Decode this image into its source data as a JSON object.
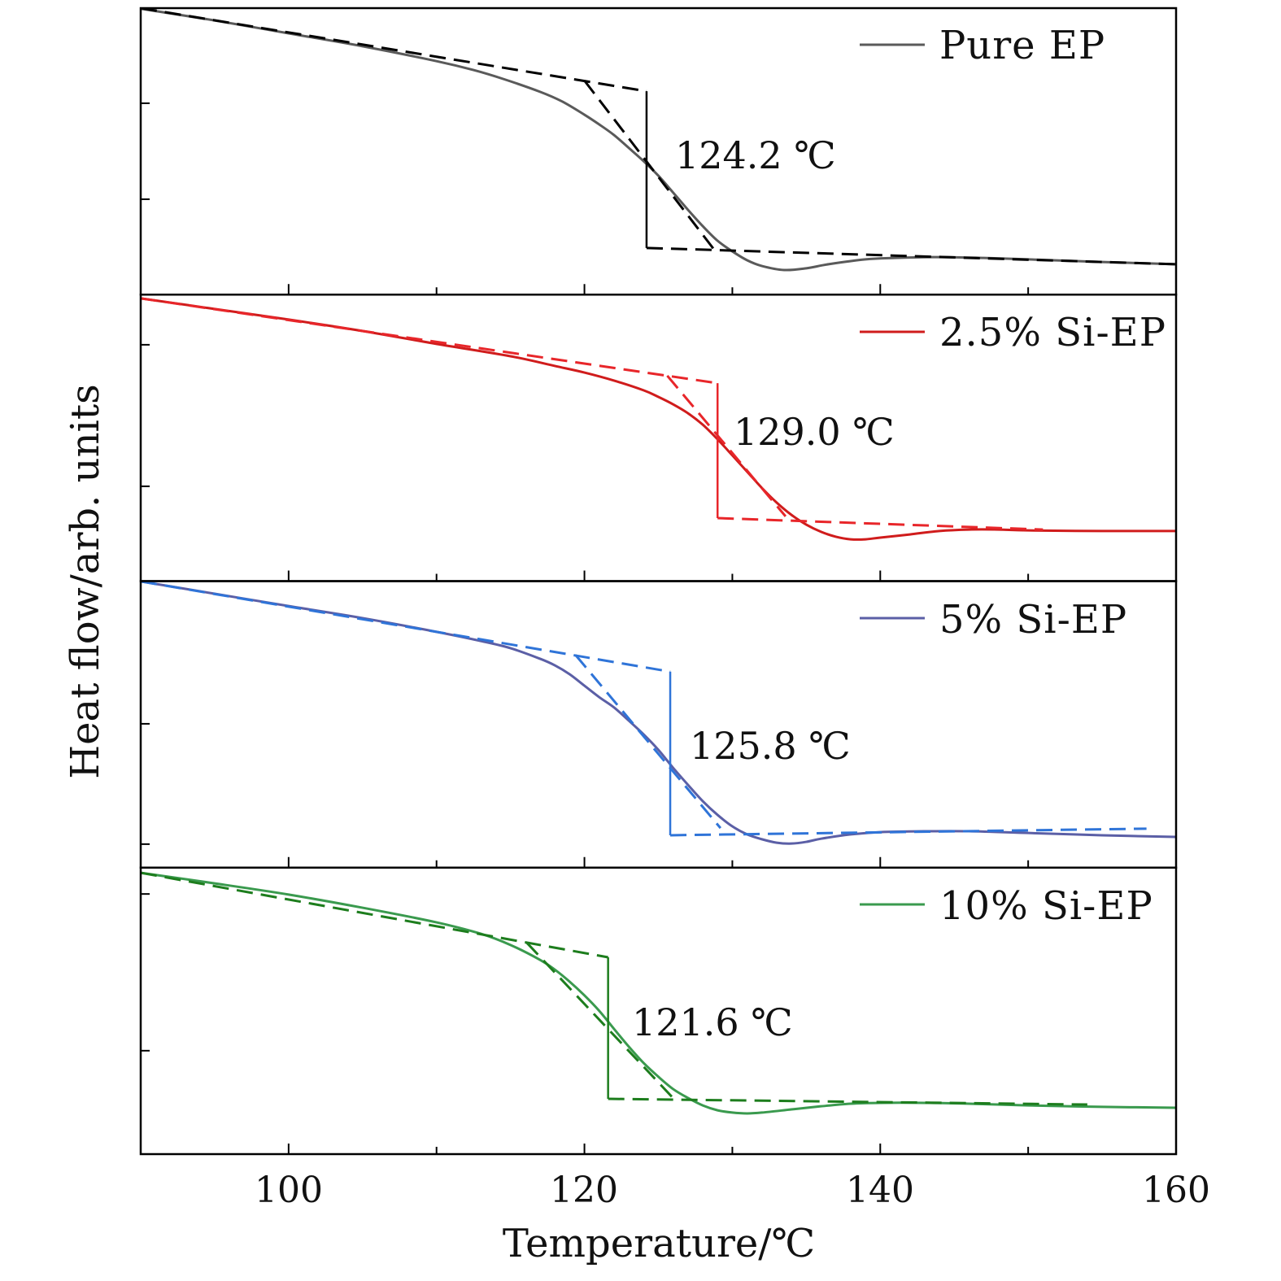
{
  "chart_data": {
    "type": "line",
    "xlabel": "Temperature/℃",
    "ylabel": "Heat flow/arb. units",
    "xlim": [
      90,
      160
    ],
    "xticks": [
      90,
      100,
      110,
      120,
      130,
      140,
      150,
      160
    ],
    "xtick_label_values": [
      100,
      120,
      140,
      160
    ],
    "xtick_labels": [
      "100",
      "120",
      "140",
      "160"
    ],
    "panels": [
      {
        "name": "Pure EP",
        "color": "#5a5a5a",
        "fit_color": "#000000",
        "ylim": [
          0,
          10
        ],
        "yticks": [
          3.33,
          6.68
        ],
        "tg": 124.2,
        "tg_label": "124.2 ℃",
        "x": [
          90,
          95,
          100,
          105,
          110,
          112.5,
          114.5,
          117,
          118.5,
          120,
          121,
          122,
          123,
          124,
          125,
          126,
          127,
          128,
          129,
          130,
          131,
          132,
          133.5,
          135,
          136.5,
          139,
          141,
          144,
          147,
          150,
          155,
          160
        ],
        "y": [
          9.98,
          9.57,
          9.12,
          8.67,
          8.15,
          7.84,
          7.53,
          7.08,
          6.74,
          6.28,
          5.94,
          5.57,
          5.12,
          4.66,
          4.15,
          3.56,
          2.96,
          2.39,
          1.88,
          1.51,
          1.2,
          1.0,
          0.86,
          0.92,
          1.06,
          1.23,
          1.28,
          1.31,
          1.28,
          1.23,
          1.14,
          1.06
        ],
        "onset_baseline": [
          [
            90,
            10.0
          ],
          [
            124.2,
            7.1
          ]
        ],
        "tangent": [
          [
            120.0,
            7.47
          ],
          [
            128.8,
            1.55
          ]
        ],
        "end_baseline": [
          [
            124.2,
            1.63
          ],
          [
            160,
            1.06
          ]
        ]
      },
      {
        "name": "2.5% Si-EP",
        "color": "#d01c1c",
        "fit_color": "#e8262a",
        "ylim": [
          0,
          10
        ],
        "yticks": [
          3.31,
          8.25
        ],
        "tg": 129.0,
        "tg_label": "129.0 ℃",
        "x": [
          90,
          95,
          100,
          105,
          110,
          115,
          118,
          120,
          122,
          124,
          125,
          126,
          127,
          128,
          129,
          130,
          131,
          132,
          133,
          134,
          135,
          136,
          137,
          138,
          139,
          140,
          142,
          144,
          146,
          148,
          150,
          155,
          160
        ],
        "y": [
          9.87,
          9.5,
          9.13,
          8.73,
          8.28,
          7.85,
          7.51,
          7.28,
          7.0,
          6.66,
          6.43,
          6.17,
          5.86,
          5.46,
          4.95,
          4.39,
          3.82,
          3.25,
          2.74,
          2.31,
          1.97,
          1.72,
          1.55,
          1.46,
          1.46,
          1.52,
          1.63,
          1.75,
          1.8,
          1.8,
          1.77,
          1.75,
          1.75
        ],
        "onset_baseline": [
          [
            90,
            9.87
          ],
          [
            129.0,
            6.91
          ]
        ],
        "tangent": [
          [
            125.6,
            7.17
          ],
          [
            133.6,
            2.26
          ]
        ],
        "end_baseline": [
          [
            129.0,
            2.2
          ],
          [
            151,
            1.8
          ]
        ]
      },
      {
        "name": "5% Si-EP",
        "color": "#5b5fa6",
        "fit_color": "#2f74d8",
        "ylim": [
          0,
          10
        ],
        "yticks": [
          0.82,
          5.02
        ],
        "tg": 125.8,
        "tg_label": "125.8 ℃",
        "x": [
          90,
          95,
          100,
          105,
          110,
          113,
          115,
          117,
          118,
          119,
          120,
          121,
          122,
          123,
          124,
          125,
          126,
          127,
          128,
          129,
          130,
          131,
          132,
          133,
          134,
          135,
          136,
          138,
          140,
          143,
          146,
          150,
          155,
          160
        ],
        "y": [
          9.99,
          9.56,
          9.13,
          8.71,
          8.23,
          7.91,
          7.66,
          7.29,
          7.06,
          6.75,
          6.35,
          5.95,
          5.59,
          5.13,
          4.65,
          4.11,
          3.48,
          2.89,
          2.32,
          1.84,
          1.44,
          1.16,
          0.99,
          0.87,
          0.84,
          0.9,
          1.01,
          1.16,
          1.24,
          1.27,
          1.27,
          1.21,
          1.13,
          1.07
        ],
        "onset_baseline": [
          [
            90,
            9.99
          ],
          [
            125.8,
            6.84
          ]
        ],
        "tangent": [
          [
            119.4,
            7.42
          ],
          [
            129.2,
            1.38
          ]
        ],
        "end_baseline": [
          [
            125.8,
            1.13
          ],
          [
            158.0,
            1.36
          ]
        ]
      },
      {
        "name": "10% Si-EP",
        "color": "#3a9a4e",
        "fit_color": "#1d7d1d",
        "ylim": [
          0,
          10
        ],
        "yticks": [
          3.61,
          9.08
        ],
        "tg": 121.6,
        "tg_label": "121.6 ℃",
        "x": [
          90,
          95,
          100,
          105,
          110,
          113,
          115,
          117,
          118,
          119,
          120,
          121,
          122,
          123,
          124,
          125,
          126,
          127,
          128,
          129,
          130,
          131,
          132,
          134,
          136,
          138,
          140,
          143,
          146,
          150,
          155,
          160
        ],
        "y": [
          9.82,
          9.45,
          9.06,
          8.6,
          8.09,
          7.69,
          7.3,
          6.78,
          6.44,
          6.02,
          5.54,
          5.0,
          4.37,
          3.75,
          3.18,
          2.7,
          2.27,
          1.96,
          1.7,
          1.53,
          1.45,
          1.42,
          1.45,
          1.56,
          1.67,
          1.76,
          1.79,
          1.79,
          1.76,
          1.7,
          1.65,
          1.62
        ],
        "onset_baseline": [
          [
            90,
            9.82
          ],
          [
            121.6,
            6.87
          ]
        ],
        "tangent": [
          [
            116.1,
            7.38
          ],
          [
            126.1,
            1.9
          ]
        ],
        "end_baseline": [
          [
            121.6,
            1.93
          ],
          [
            154,
            1.73
          ]
        ]
      }
    ]
  }
}
